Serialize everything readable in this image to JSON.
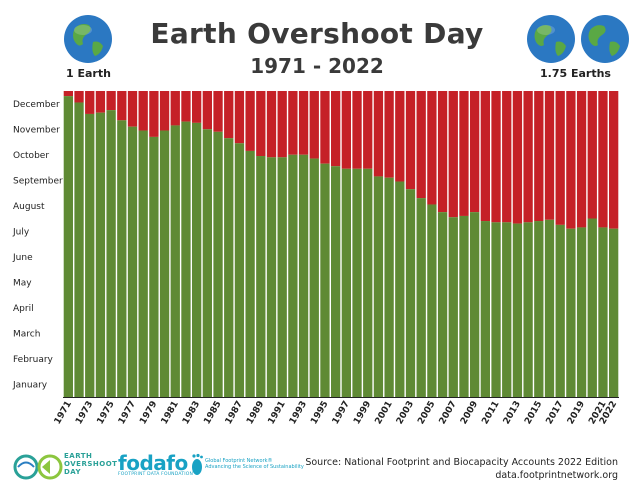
{
  "header": {
    "title": "Earth Overshoot Day",
    "subtitle": "1971 - 2022",
    "left_label": "1 Earth",
    "right_label": "1.75 Earths"
  },
  "footer": {
    "source_line1": "Source: National Footprint and Biocapacity Accounts 2022 Edition",
    "source_line2": "data.footprintnetwork.org",
    "logo1_text_line1": "EARTH",
    "logo1_text_line2": "OVERSHOOT",
    "logo1_text_line3": "DAY",
    "logo2_name": "fodafo",
    "logo2_sub": "FOOTPRINT DATA FOUNDATION",
    "logo3_line1": "Global Footprint Network®",
    "logo3_line2": "Advancing the Science of Sustainability"
  },
  "colors": {
    "overshoot": "#c52127",
    "budget": "#5f8a34",
    "ocean": "#2b78c2",
    "land": "#5aa845"
  },
  "icons": [
    "globe-icon",
    "earth-overshoot-day-logo",
    "fodafo-logo",
    "global-footprint-network-logo"
  ],
  "chart_data": {
    "type": "bar",
    "stacked": true,
    "title": "Earth Overshoot Day",
    "subtitle": "1971 - 2022",
    "y_axis_labels": [
      "January",
      "February",
      "March",
      "April",
      "May",
      "June",
      "July",
      "August",
      "September",
      "October",
      "November",
      "December"
    ],
    "x_tick_labels": [
      "1971",
      "1973",
      "1975",
      "1977",
      "1979",
      "1981",
      "1983",
      "1985",
      "1987",
      "1989",
      "1991",
      "1993",
      "1995",
      "1997",
      "1999",
      "2001",
      "2003",
      "2005",
      "2007",
      "2009",
      "2011",
      "2013",
      "2015",
      "2017",
      "2019",
      "2021",
      "2022"
    ],
    "ylim": [
      0,
      12
    ],
    "categories": [
      1971,
      1972,
      1973,
      1974,
      1975,
      1976,
      1977,
      1978,
      1979,
      1980,
      1981,
      1982,
      1983,
      1984,
      1985,
      1986,
      1987,
      1988,
      1989,
      1990,
      1991,
      1992,
      1993,
      1994,
      1995,
      1996,
      1997,
      1998,
      1999,
      2000,
      2001,
      2002,
      2003,
      2004,
      2005,
      2006,
      2007,
      2008,
      2009,
      2010,
      2011,
      2012,
      2013,
      2014,
      2015,
      2016,
      2017,
      2018,
      2019,
      2020,
      2021,
      2022
    ],
    "series": [
      {
        "name": "",
        "color": "#5f8a34",
        "values": [
          11.8,
          11.55,
          11.1,
          11.15,
          11.25,
          10.85,
          10.6,
          10.45,
          10.2,
          10.45,
          10.65,
          10.8,
          10.75,
          10.5,
          10.4,
          10.15,
          9.95,
          9.65,
          9.45,
          9.4,
          9.4,
          9.5,
          9.5,
          9.35,
          9.15,
          9.05,
          8.95,
          8.95,
          8.95,
          8.65,
          8.6,
          8.45,
          8.15,
          7.8,
          7.55,
          7.25,
          7.05,
          7.1,
          7.25,
          6.9,
          6.85,
          6.85,
          6.8,
          6.85,
          6.9,
          6.95,
          6.75,
          6.6,
          6.65,
          7.0,
          6.65,
          6.6
        ]
      },
      {
        "name": "",
        "color": "#c52127",
        "note_values_fill_to": 12
      }
    ]
  }
}
